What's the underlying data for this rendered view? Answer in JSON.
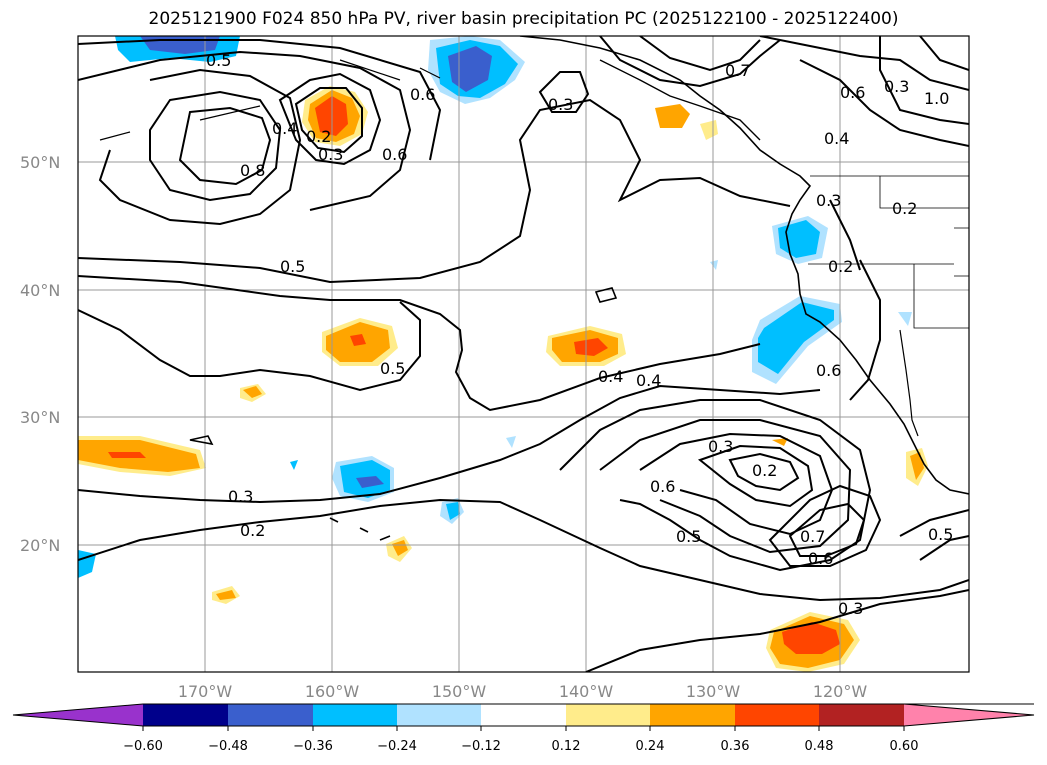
{
  "title": "2025121900 F024 850 hPa PV, river basin precipitation PC (2025122100 - 2025122400)",
  "lat_labels": [
    "50°N",
    "40°N",
    "30°N",
    "20°N"
  ],
  "lon_labels": [
    "170°W",
    "160°W",
    "150°W",
    "140°W",
    "130°W",
    "120°W"
  ],
  "colorbar": {
    "ticks": [
      "−0.60",
      "−0.48",
      "−0.36",
      "−0.24",
      "−0.12",
      "0.12",
      "0.24",
      "0.36",
      "0.48",
      "0.60"
    ],
    "colors": [
      "#9932cc",
      "#00008b",
      "#3a5fcd",
      "#00bfff",
      "#b0e2ff",
      "#ffffff",
      "#ffec8b",
      "#ffa500",
      "#ff4500",
      "#b22222",
      "#ff82ab"
    ]
  },
  "contour_labels": [
    "0.5",
    "0.6",
    "0.7",
    "0.6",
    "0.3",
    "0.4",
    "0.2",
    "0.3",
    "0.6",
    "0.8",
    "0.4",
    "0.2",
    "0.3",
    "0.5",
    "0.4",
    "0.4",
    "0.5",
    "0.3",
    "0.2",
    "0.3",
    "0.2",
    "0.6",
    "0.6",
    "0.5",
    "0.7",
    "0.6",
    "0.5",
    "0.3",
    "0.3",
    "0.2",
    "1.0"
  ]
}
